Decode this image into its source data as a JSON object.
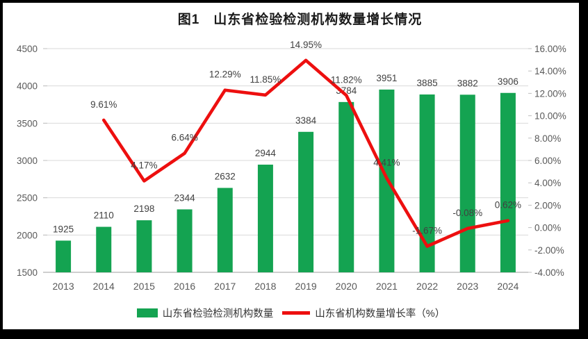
{
  "chart_data": {
    "type": "combo",
    "title": "图1　山东省检验检测机构数量增长情况",
    "categories": [
      "2013",
      "2014",
      "2015",
      "2016",
      "2017",
      "2018",
      "2019",
      "2020",
      "2021",
      "2022",
      "2023",
      "2024"
    ],
    "series": [
      {
        "name": "山东省检验检测机构数量",
        "type": "bar",
        "axis": "left",
        "color": "#14a351",
        "values": [
          1925,
          2110,
          2198,
          2344,
          2632,
          2944,
          3384,
          3784,
          3951,
          3885,
          3882,
          3906
        ]
      },
      {
        "name": "山东省机构数量增长率（%）",
        "type": "line",
        "axis": "right",
        "color": "#ed0f0f",
        "values": [
          null,
          9.61,
          4.17,
          6.64,
          12.29,
          11.85,
          14.95,
          11.82,
          4.41,
          -1.67,
          -0.08,
          0.62
        ],
        "labels": [
          null,
          "9.61%",
          "4.17%",
          "6.64%",
          "12.29%",
          "11.85%",
          "14.95%",
          "11.82%",
          "4.41%",
          "-1.67%",
          "-0.08%",
          "0.62%"
        ]
      }
    ],
    "left_axis": {
      "min": 1500,
      "max": 4500,
      "step": 500,
      "ticks": [
        "1500",
        "2000",
        "2500",
        "3000",
        "3500",
        "4000",
        "4500"
      ]
    },
    "right_axis": {
      "min": -4,
      "max": 16,
      "step": 2,
      "ticks": [
        "-4.00%",
        "-2.00%",
        "0.00%",
        "2.00%",
        "4.00%",
        "6.00%",
        "8.00%",
        "10.00%",
        "12.00%",
        "14.00%",
        "16.00%"
      ]
    },
    "grid": true,
    "legend_position": "bottom",
    "colors": {
      "grid": "#d9d9d9",
      "axis_line": "#bfbfbf",
      "frame_border": "#000000"
    }
  }
}
